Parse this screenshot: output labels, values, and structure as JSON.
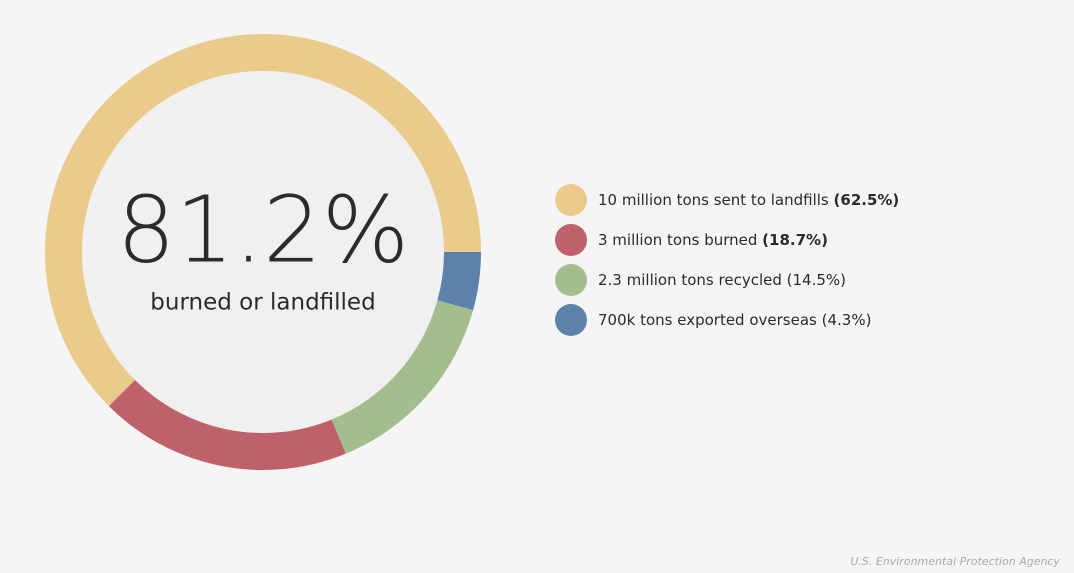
{
  "chart_data": {
    "type": "donut",
    "center_value": "81.2%",
    "center_label": "burned or landfilled",
    "categories": [
      "10 million tons sent to landfills",
      "3 million tons burned",
      "2.3 million tons recycled",
      "700k tons exported overseas"
    ],
    "values": [
      62.5,
      18.7,
      14.5,
      4.3
    ],
    "value_labels": [
      "(62.5%)",
      "(18.7%)",
      "(14.5%)",
      "(4.3%)"
    ],
    "bold_value_labels": [
      true,
      true,
      false,
      false
    ],
    "colors": [
      "#ebcb8b",
      "#bf616a",
      "#a3be8c",
      "#5e81ac"
    ],
    "source": "U.S. Environmental Protection Agency"
  }
}
